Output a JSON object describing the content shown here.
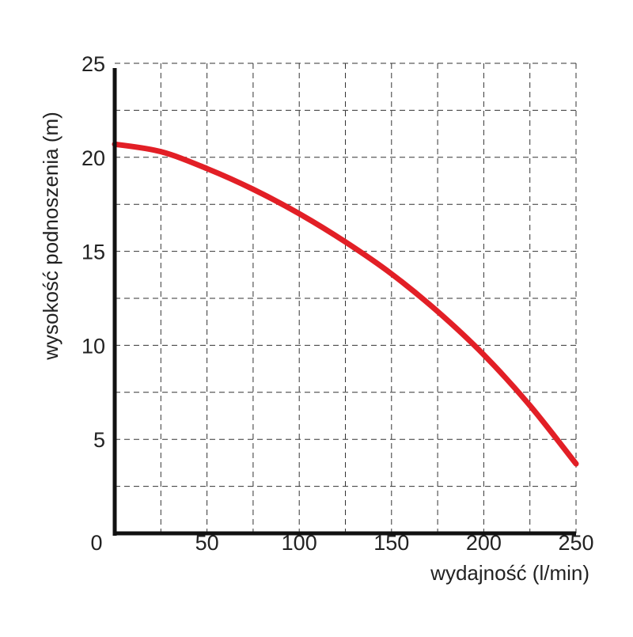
{
  "chart_data": {
    "type": "line",
    "xlabel": "wydajność (l/min)",
    "ylabel": "wysokość podnoszenia (m)",
    "xlim": [
      0,
      250
    ],
    "ylim": [
      0,
      25
    ],
    "x_ticks": [
      "0",
      "50",
      "100",
      "150",
      "200",
      "250"
    ],
    "y_ticks": [
      "5",
      "10",
      "15",
      "20",
      "25"
    ],
    "grid": true,
    "grid_style": "dashed",
    "series": [
      {
        "color": "#e21f26",
        "x": [
          0,
          25,
          50,
          75,
          100,
          125,
          150,
          175,
          200,
          225,
          250
        ],
        "y": [
          20.7,
          20.3,
          19.4,
          18.3,
          17.0,
          15.5,
          13.8,
          11.8,
          9.5,
          6.8,
          3.7
        ]
      }
    ]
  }
}
